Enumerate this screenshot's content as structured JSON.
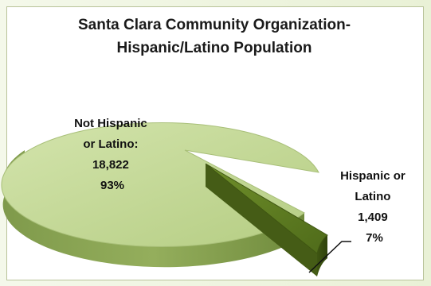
{
  "chart_data": {
    "type": "pie",
    "title_lines": [
      "Santa Clara Community Organization-",
      "Hispanic/Latino Population"
    ],
    "slices": [
      {
        "label_lines": [
          "Not Hispanic",
          "or Latino:"
        ],
        "value": 18822,
        "value_label": "18,822",
        "percent_label": "93%",
        "color": "#bfd591",
        "exploded": false
      },
      {
        "label_lines": [
          "Hispanic or",
          "Latino"
        ],
        "value": 1409,
        "value_label": "1,409",
        "percent_label": "7%",
        "color": "#5d7a22",
        "exploded": true
      }
    ],
    "legend": "none",
    "style": "3d-exploded"
  }
}
